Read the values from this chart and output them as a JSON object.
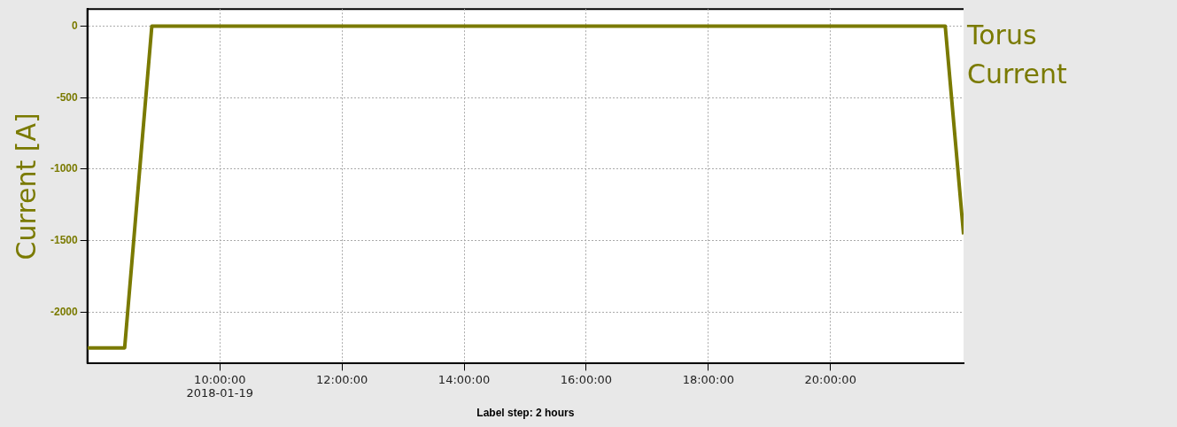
{
  "chart_data": {
    "type": "line",
    "title": "Torus Current",
    "ylabel": "Current [A]",
    "xlabel": "Label step: 2 hours",
    "x": [
      7.83,
      8.44,
      8.885,
      21.88,
      22.18
    ],
    "series": [
      {
        "color": "#7a7a00",
        "values": [
          -2250,
          -2250,
          0,
          0,
          -1456
        ]
      }
    ],
    "xlim": [
      7.83,
      22.18
    ],
    "xticks": [
      {
        "value": 10,
        "label": "10:00:00\n2018-01-19"
      },
      {
        "value": 12,
        "label": "12:00:00"
      },
      {
        "value": 14,
        "label": "14:00:00"
      },
      {
        "value": 16,
        "label": "16:00:00"
      },
      {
        "value": 18,
        "label": "18:00:00"
      },
      {
        "value": 20,
        "label": "20:00:00"
      }
    ],
    "ylim": [
      -2360,
      120
    ],
    "yticks": [
      -2000,
      -1500,
      -1000,
      -500,
      0
    ],
    "grid": true,
    "legend": false,
    "marker": "none",
    "line_style": "solid"
  }
}
